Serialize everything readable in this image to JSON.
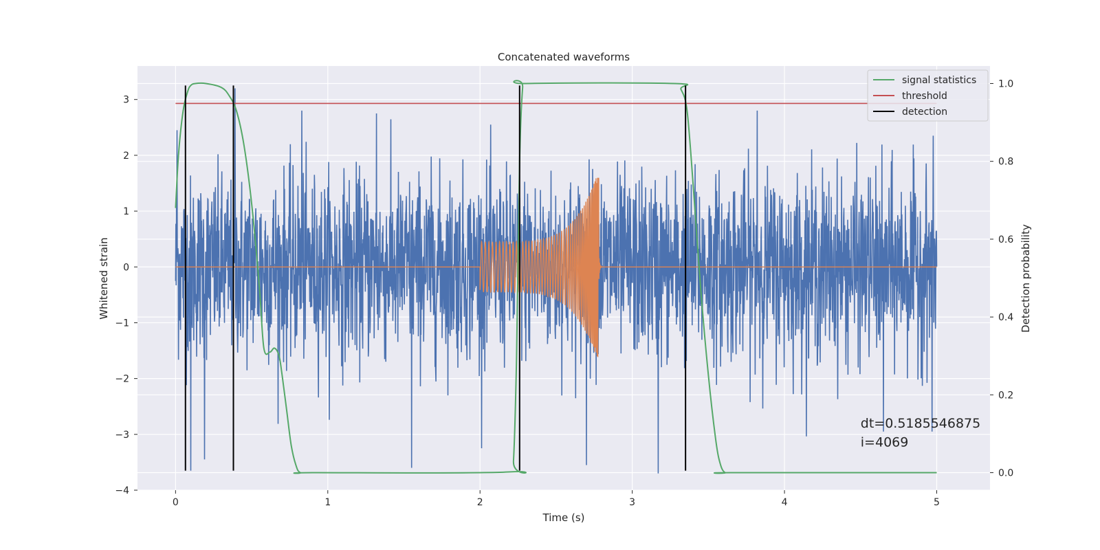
{
  "chart_data": {
    "type": "line",
    "title": "Concatenated waveforms",
    "xlabel": "Time (s)",
    "ylabel": "Whitened strain",
    "y2label": "Detection probability",
    "xlim": [
      -0.25,
      5.35
    ],
    "ylim": [
      -4,
      3.6
    ],
    "y2lim": [
      -0.045,
      1.045
    ],
    "x_ticks": [
      0,
      1,
      2,
      3,
      4,
      5
    ],
    "x_tick_labels": [
      "0",
      "1",
      "2",
      "3",
      "4",
      "5"
    ],
    "y_ticks": [
      -4,
      -3,
      -2,
      -1,
      0,
      1,
      2,
      3
    ],
    "y_tick_labels": [
      "−4",
      "−3",
      "−2",
      "−1",
      "0",
      "1",
      "2",
      "3"
    ],
    "y2_ticks": [
      0,
      0.2,
      0.4,
      0.6,
      0.8,
      1.0
    ],
    "y2_tick_labels": [
      "0.0",
      "0.2",
      "0.4",
      "0.6",
      "0.8",
      "1.0"
    ],
    "grid": true,
    "legend_position": "top-right",
    "series": [
      {
        "name": "",
        "axis": "left",
        "kind": "noise",
        "color": "#4c72b0",
        "x_range": [
          0,
          5
        ],
        "typical_abs_peak": 2.0,
        "extremes": [
          [
            0.01,
            2.45
          ],
          [
            0.1,
            -3.65
          ],
          [
            0.19,
            -3.45
          ],
          [
            0.39,
            3.2
          ],
          [
            0.83,
            2.8
          ],
          [
            1.32,
            2.75
          ],
          [
            1.55,
            -3.6
          ],
          [
            2.7,
            -3.55
          ],
          [
            3.17,
            -3.7
          ],
          [
            3.82,
            2.8
          ],
          [
            4.65,
            -2.95
          ],
          [
            4.97,
            -2.95
          ]
        ]
      },
      {
        "name": "",
        "axis": "left",
        "kind": "chirp",
        "color": "#dd8452",
        "x_range": [
          2.0,
          2.78
        ],
        "amplitude_start": 0.45,
        "amplitude_peak": 1.65,
        "peak_time": 2.77,
        "baseline": 0
      },
      {
        "name": "signal statistics",
        "axis": "right",
        "color": "#55a868",
        "x": [
          0.0,
          0.02,
          0.05,
          0.08,
          0.1,
          0.13,
          0.2,
          0.3,
          0.35,
          0.4,
          0.45,
          0.5,
          0.55,
          0.58,
          0.62,
          0.65,
          0.68,
          0.7,
          0.73,
          0.76,
          0.79,
          0.82,
          0.9,
          2.2,
          2.22,
          2.24,
          2.26,
          2.28,
          2.3,
          3.28,
          3.32,
          3.36,
          3.4,
          3.45,
          3.5,
          3.55,
          3.58,
          3.61,
          3.65,
          5.0
        ],
        "y": [
          0.68,
          0.82,
          0.93,
          0.98,
          0.995,
          1.0,
          1.0,
          0.99,
          0.97,
          0.93,
          0.84,
          0.69,
          0.48,
          0.32,
          0.31,
          0.32,
          0.3,
          0.25,
          0.16,
          0.07,
          0.02,
          0.0,
          0.0,
          0.002,
          0.03,
          0.3,
          0.8,
          0.99,
          1.0,
          1.0,
          0.985,
          0.93,
          0.74,
          0.47,
          0.25,
          0.08,
          0.02,
          0.0,
          0.0,
          0.0
        ]
      },
      {
        "name": "threshold",
        "axis": "left",
        "color": "#c44e52",
        "x": [
          0,
          5
        ],
        "y": [
          2.93,
          2.93
        ]
      },
      {
        "name": "detection",
        "axis": "left",
        "kind": "vertical-lines",
        "color": "#000000",
        "x": [
          0.065,
          0.38,
          2.26,
          3.35
        ],
        "y_range": [
          -3.65,
          3.25
        ]
      }
    ],
    "annotations": [
      {
        "text": "dt=0.5185546875",
        "x": 4.5,
        "y": -2.88
      },
      {
        "text": " i=4069",
        "x": 4.5,
        "y": -3.22
      }
    ]
  }
}
